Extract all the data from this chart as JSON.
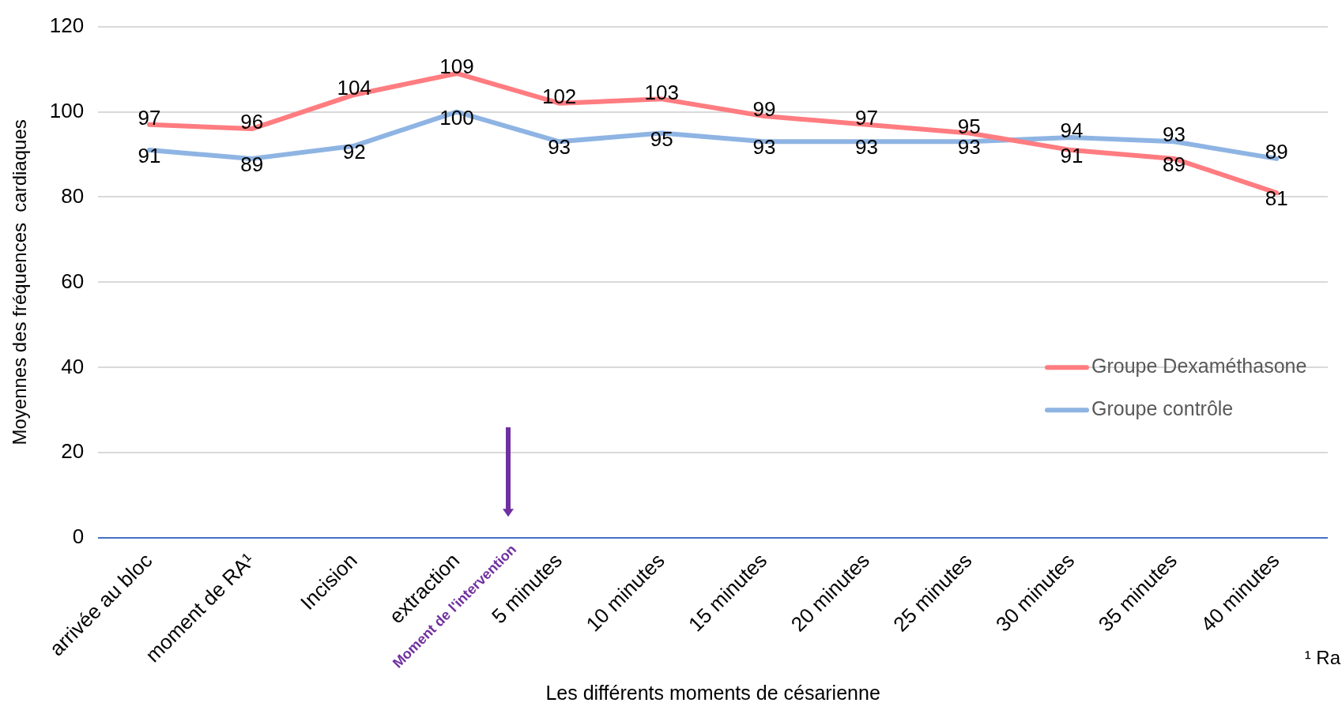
{
  "chart_data": {
    "type": "line",
    "xlabel": "Les différents moments de césarienne",
    "ylabel": "Moyennes des fréquences  cardiaques",
    "categories": [
      "arrivée au bloc",
      "moment de RA¹",
      "Incision",
      "extraction",
      "5 minutes",
      "10 minutes",
      "15 minutes",
      "20 minutes",
      "25 minutes",
      "30 minutes",
      "35 minutes",
      "40 minutes"
    ],
    "series": [
      {
        "name": "Groupe Dexaméthasone",
        "color": "#ff7c80",
        "values": [
          97,
          96,
          104,
          109,
          102,
          103,
          99,
          97,
          95,
          91,
          89,
          81
        ]
      },
      {
        "name": "Groupe contrôle",
        "color": "#8eb4e3",
        "values": [
          91,
          89,
          92,
          100,
          93,
          95,
          93,
          93,
          93,
          94,
          93,
          89
        ]
      }
    ],
    "ylim": [
      0,
      120
    ],
    "yticks": [
      0,
      20,
      40,
      60,
      80,
      100,
      120
    ],
    "grid": "y",
    "legend": "right",
    "marker": "none",
    "line_style": "solid",
    "data_labels": true,
    "annotations": [
      "Moment de l'intervention",
      "¹ Ra"
    ]
  }
}
